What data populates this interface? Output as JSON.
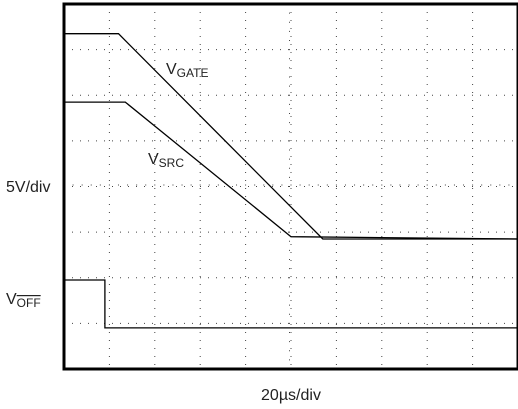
{
  "chart_data": {
    "type": "line",
    "title": "",
    "xlabel": "20µs/div",
    "ylabel": "5V/div",
    "x_divisions": 10,
    "y_divisions": 8,
    "xlim": [
      0,
      10
    ],
    "ylim": [
      0,
      8
    ],
    "grid": true,
    "series": [
      {
        "name": "VGATE",
        "label_main": "V",
        "label_sub": "GATE",
        "overline": false,
        "x": [
          0,
          1.2,
          5.7,
          10
        ],
        "y": [
          7.35,
          7.35,
          2.85,
          2.85
        ]
      },
      {
        "name": "VSRC",
        "label_main": "V",
        "label_sub": "SRC",
        "overline": false,
        "x": [
          0,
          1.35,
          5.0,
          10
        ],
        "y": [
          5.85,
          5.85,
          2.9,
          2.85
        ]
      },
      {
        "name": "VOFF",
        "label_main": "V",
        "label_sub": "OFF",
        "overline": true,
        "x": [
          0,
          0.9,
          0.9,
          10
        ],
        "y": [
          1.95,
          1.95,
          0.9,
          0.9
        ]
      }
    ]
  }
}
